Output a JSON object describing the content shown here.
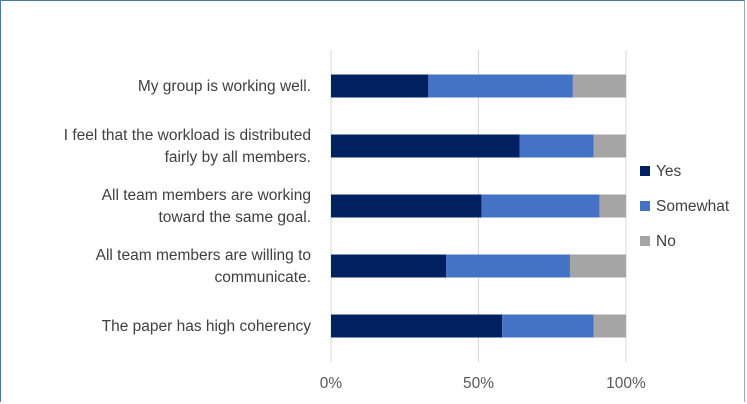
{
  "chart_data": {
    "type": "bar",
    "orientation": "horizontal",
    "stacked": "100%",
    "categories": [
      [
        "My group is working well."
      ],
      [
        "I feel that the workload is distributed",
        "fairly by all members."
      ],
      [
        "All team members are working",
        "toward the same goal."
      ],
      [
        "All team members are willing to",
        "communicate."
      ],
      [
        "The paper has high coherency"
      ]
    ],
    "series": [
      {
        "name": "Yes",
        "color": "#002060",
        "values": [
          33,
          64,
          51,
          39,
          58
        ]
      },
      {
        "name": "Somewhat",
        "color": "#4472c4",
        "values": [
          49,
          25,
          40,
          42,
          31
        ]
      },
      {
        "name": "No",
        "color": "#a5a5a5",
        "values": [
          18,
          11,
          9,
          19,
          11
        ]
      }
    ],
    "x_ticks": [
      "0%",
      "50%",
      "100%"
    ],
    "xlim": [
      0,
      100
    ],
    "grid": true,
    "legend_position": "right",
    "title": "",
    "xlabel": "",
    "ylabel": ""
  }
}
